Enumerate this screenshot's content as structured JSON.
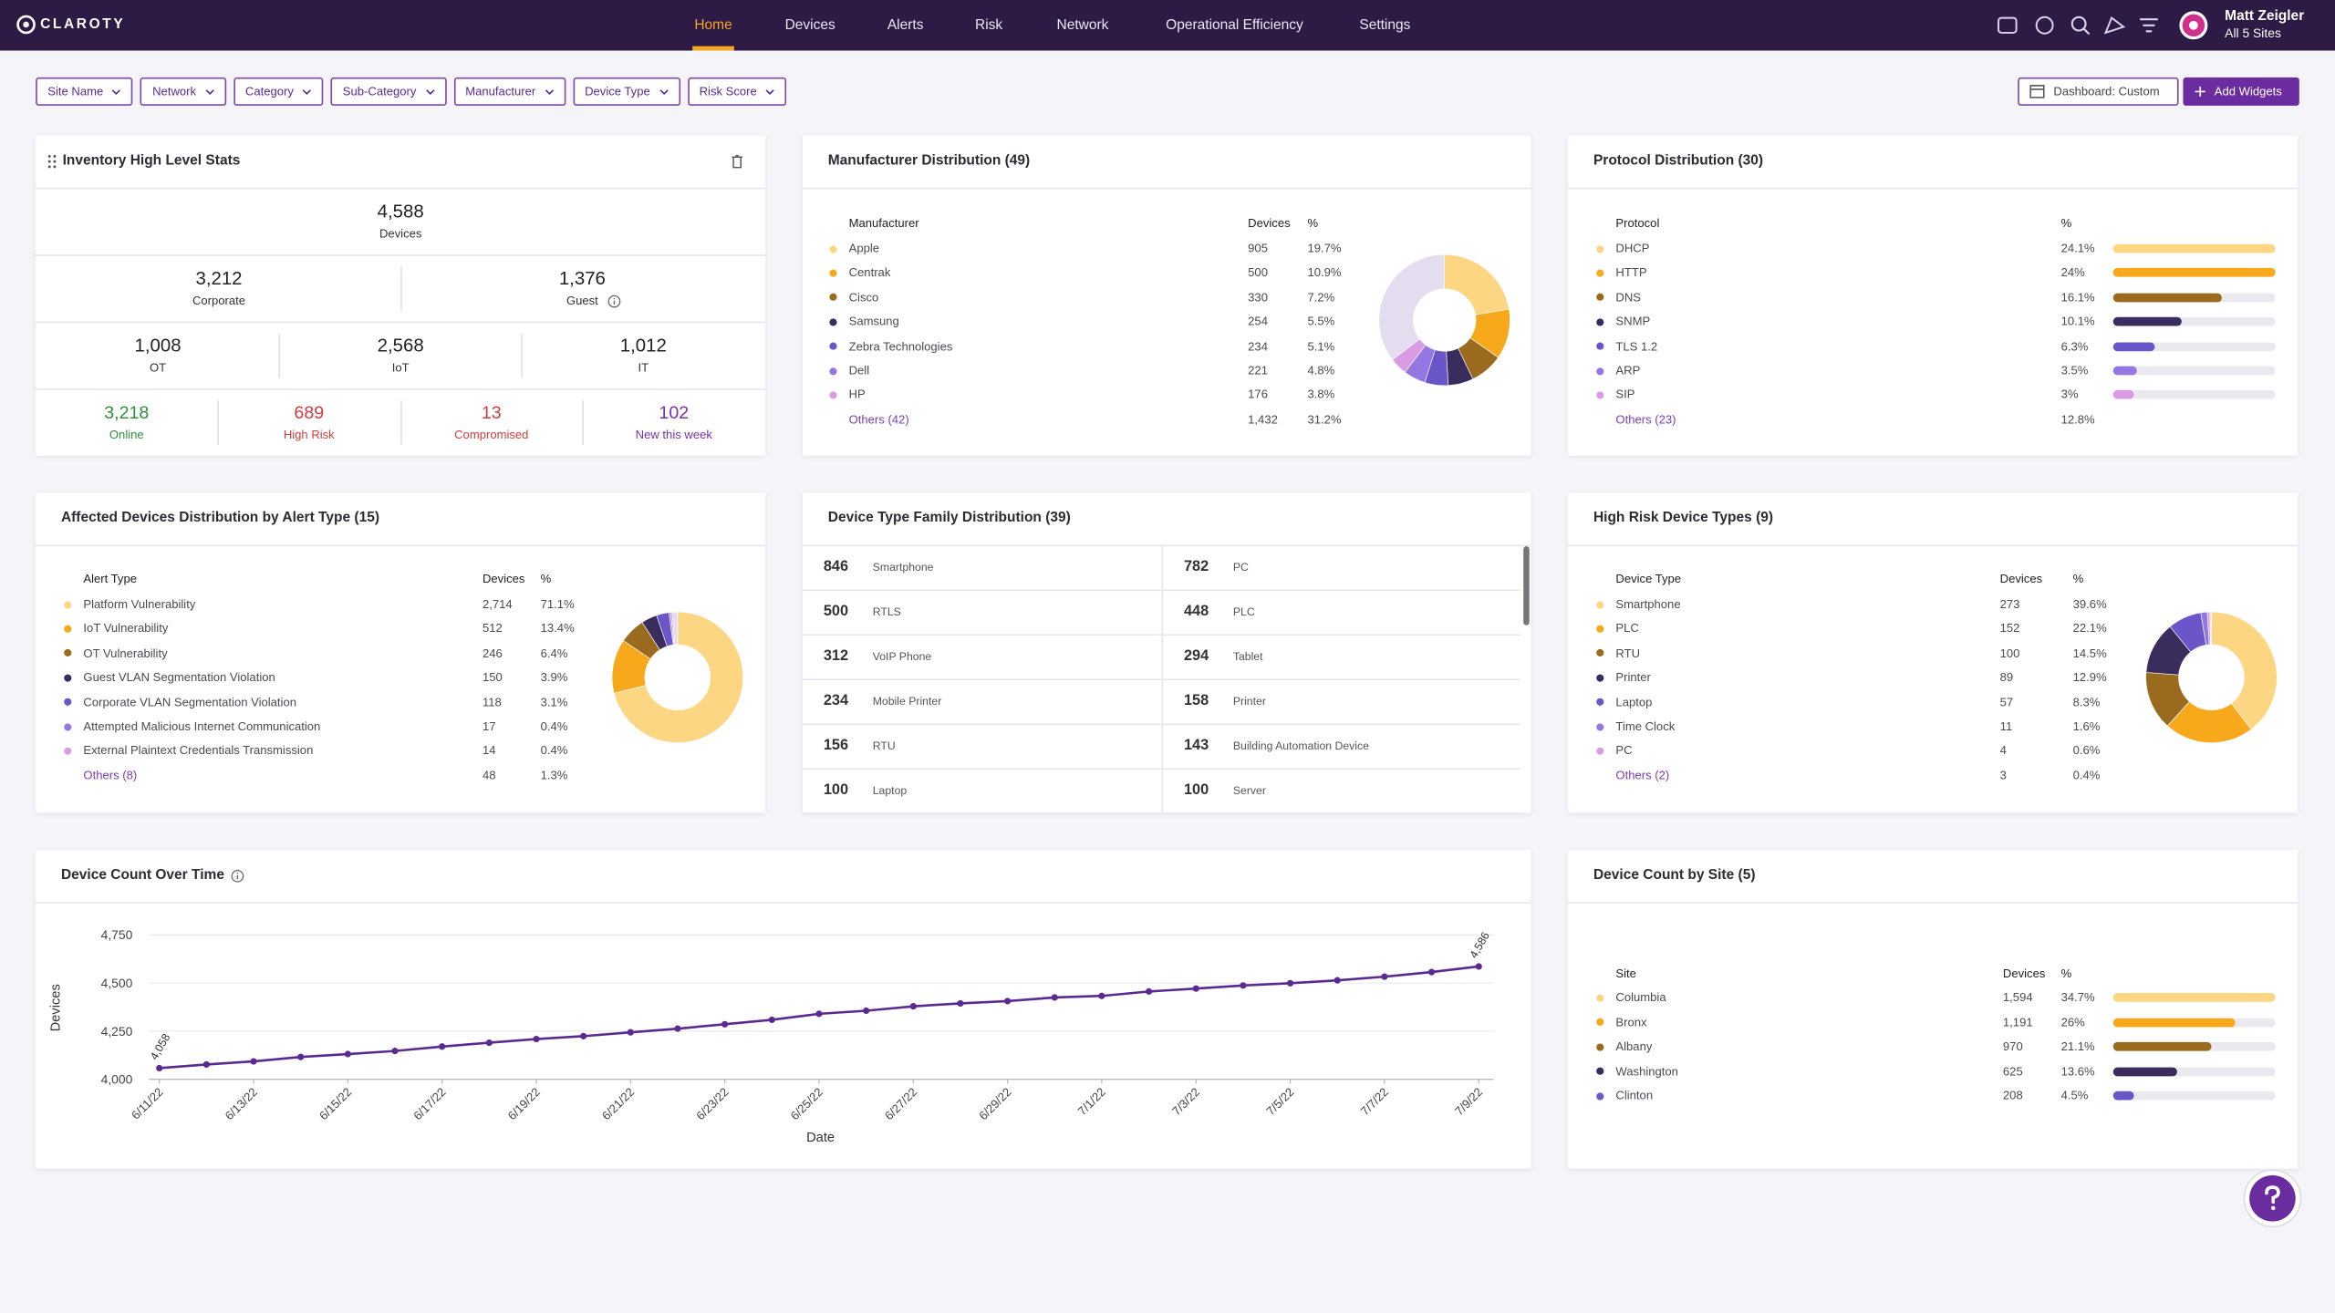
{
  "nav": {
    "brand": "CLAROTY",
    "items": [
      "Home",
      "Devices",
      "Alerts",
      "Risk",
      "Network",
      "Operational Efficiency",
      "Settings"
    ],
    "active": 0,
    "user": {
      "name": "Matt Zeigler",
      "scope": "All 5 Sites"
    }
  },
  "filters": {
    "items": [
      "Site Name",
      "Network",
      "Category",
      "Sub-Category",
      "Manufacturer",
      "Device Type",
      "Risk Score"
    ],
    "dashboard": "Dashboard: Custom",
    "add": "Add Widgets"
  },
  "palette": [
    "#fcd683",
    "#f7a81b",
    "#9a6a1f",
    "#3a2c5c",
    "#6a55c9",
    "#9477e3",
    "#d99be3",
    "#e4dcef"
  ],
  "inventory": {
    "title": "Inventory High Level Stats",
    "total": {
      "value": "4,588",
      "label": "Devices"
    },
    "split": [
      {
        "value": "3,212",
        "label": "Corporate"
      },
      {
        "value": "1,376",
        "label": "Guest"
      }
    ],
    "kinds": [
      {
        "value": "1,008",
        "label": "OT"
      },
      {
        "value": "2,568",
        "label": "IoT"
      },
      {
        "value": "1,012",
        "label": "IT"
      }
    ],
    "status": [
      {
        "value": "3,218",
        "label": "Online",
        "color": "#2f8f3c"
      },
      {
        "value": "689",
        "label": "High Risk",
        "color": "#d23d3d"
      },
      {
        "value": "13",
        "label": "Compromised",
        "color": "#d23d3d"
      },
      {
        "value": "102",
        "label": "New this week",
        "color": "#7a2fa8"
      }
    ]
  },
  "manufacturer": {
    "title": "Manufacturer Distribution (49)",
    "columns": [
      "Manufacturer",
      "Devices",
      "%"
    ],
    "rows": [
      {
        "name": "Apple",
        "devices": "905",
        "pct": {
          "value": 19.7,
          "label": "19.7%"
        }
      },
      {
        "name": "Centrak",
        "devices": "500",
        "pct": {
          "value": 10.9,
          "label": "10.9%"
        }
      },
      {
        "name": "Cisco",
        "devices": "330",
        "pct": {
          "value": 7.2,
          "label": "7.2%"
        }
      },
      {
        "name": "Samsung",
        "devices": "254",
        "pct": {
          "value": 5.5,
          "label": "5.5%"
        }
      },
      {
        "name": "Zebra Technologies",
        "devices": "234",
        "pct": {
          "value": 5.1,
          "label": "5.1%"
        }
      },
      {
        "name": "Dell",
        "devices": "221",
        "pct": {
          "value": 4.8,
          "label": "4.8%"
        }
      },
      {
        "name": "HP",
        "devices": "176",
        "pct": {
          "value": 3.8,
          "label": "3.8%"
        }
      }
    ],
    "others": {
      "name": "Others (42)",
      "devices": "1,432",
      "pct": {
        "value": 31.2,
        "label": "31.2%"
      }
    }
  },
  "protocol": {
    "title": "Protocol Distribution (30)",
    "columns": [
      "Protocol",
      "%"
    ],
    "rows": [
      {
        "name": "DHCP",
        "pct": {
          "value": 24.1,
          "label": "24.1%"
        }
      },
      {
        "name": "HTTP",
        "pct": {
          "value": 24,
          "label": "24%"
        }
      },
      {
        "name": "DNS",
        "pct": {
          "value": 16.1,
          "label": "16.1%"
        }
      },
      {
        "name": "SNMP",
        "pct": {
          "value": 10.1,
          "label": "10.1%"
        }
      },
      {
        "name": "TLS 1.2",
        "pct": {
          "value": 6.3,
          "label": "6.3%"
        }
      },
      {
        "name": "ARP",
        "pct": {
          "value": 3.5,
          "label": "3.5%"
        }
      },
      {
        "name": "SIP",
        "pct": {
          "value": 3,
          "label": "3%"
        }
      }
    ],
    "others": {
      "name": "Others (23)",
      "pct": {
        "value": 12.8,
        "label": "12.8%"
      }
    }
  },
  "alerts": {
    "title": "Affected Devices Distribution by Alert Type (15)",
    "columns": [
      "Alert Type",
      "Devices",
      "%"
    ],
    "rows": [
      {
        "name": "Platform Vulnerability",
        "devices": "2,714",
        "pct": {
          "value": 71.1,
          "label": "71.1%"
        }
      },
      {
        "name": "IoT Vulnerability",
        "devices": "512",
        "pct": {
          "value": 13.4,
          "label": "13.4%"
        }
      },
      {
        "name": "OT Vulnerability",
        "devices": "246",
        "pct": {
          "value": 6.4,
          "label": "6.4%"
        }
      },
      {
        "name": "Guest VLAN Segmentation Violation",
        "devices": "150",
        "pct": {
          "value": 3.9,
          "label": "3.9%"
        }
      },
      {
        "name": "Corporate VLAN Segmentation Violation",
        "devices": "118",
        "pct": {
          "value": 3.1,
          "label": "3.1%"
        }
      },
      {
        "name": "Attempted Malicious Internet Communication",
        "devices": "17",
        "pct": {
          "value": 0.4,
          "label": "0.4%"
        }
      },
      {
        "name": "External Plaintext Credentials Transmission",
        "devices": "14",
        "pct": {
          "value": 0.4,
          "label": "0.4%"
        }
      }
    ],
    "others": {
      "name": "Others (8)",
      "devices": "48",
      "pct": {
        "value": 1.3,
        "label": "1.3%"
      }
    }
  },
  "family": {
    "title": "Device Type Family Distribution (39)",
    "items": [
      {
        "count": "846",
        "name": "Smartphone"
      },
      {
        "count": "782",
        "name": "PC"
      },
      {
        "count": "500",
        "name": "RTLS"
      },
      {
        "count": "448",
        "name": "PLC"
      },
      {
        "count": "312",
        "name": "VoIP Phone"
      },
      {
        "count": "294",
        "name": "Tablet"
      },
      {
        "count": "234",
        "name": "Mobile Printer"
      },
      {
        "count": "158",
        "name": "Printer"
      },
      {
        "count": "156",
        "name": "RTU"
      },
      {
        "count": "143",
        "name": "Building Automation Device"
      },
      {
        "count": "100",
        "name": "Laptop"
      },
      {
        "count": "100",
        "name": "Server"
      }
    ]
  },
  "risk": {
    "title": "High Risk Device Types (9)",
    "columns": [
      "Device Type",
      "Devices",
      "%"
    ],
    "rows": [
      {
        "name": "Smartphone",
        "devices": "273",
        "pct": {
          "value": 39.6,
          "label": "39.6%"
        }
      },
      {
        "name": "PLC",
        "devices": "152",
        "pct": {
          "value": 22.1,
          "label": "22.1%"
        }
      },
      {
        "name": "RTU",
        "devices": "100",
        "pct": {
          "value": 14.5,
          "label": "14.5%"
        }
      },
      {
        "name": "Printer",
        "devices": "89",
        "pct": {
          "value": 12.9,
          "label": "12.9%"
        }
      },
      {
        "name": "Laptop",
        "devices": "57",
        "pct": {
          "value": 8.3,
          "label": "8.3%"
        }
      },
      {
        "name": "Time Clock",
        "devices": "11",
        "pct": {
          "value": 1.6,
          "label": "1.6%"
        }
      },
      {
        "name": "PC",
        "devices": "4",
        "pct": {
          "value": 0.6,
          "label": "0.6%"
        }
      }
    ],
    "others": {
      "name": "Others (2)",
      "devices": "3",
      "pct": {
        "value": 0.4,
        "label": "0.4%"
      }
    }
  },
  "timeline": {
    "chart_data": {
      "type": "line",
      "title": "Device Count Over Time",
      "x_label": "Date",
      "y_label": "Devices",
      "color": "#5b2a91",
      "categories": [
        "6/11/22",
        null,
        "6/13/22",
        null,
        "6/15/22",
        null,
        "6/17/22",
        null,
        "6/19/22",
        null,
        "6/21/22",
        null,
        "6/23/22",
        null,
        "6/25/22",
        null,
        "6/27/22",
        null,
        "6/29/22",
        null,
        "7/1/22",
        null,
        "7/3/22",
        null,
        "7/5/22",
        null,
        "7/7/22",
        null,
        "7/9/22"
      ],
      "values": [
        4058,
        4077,
        4093,
        4116,
        4131,
        4147,
        4170,
        4190,
        4209,
        4224,
        4244,
        4263,
        4286,
        4309,
        4340,
        4356,
        4379,
        4394,
        4406,
        4425,
        4433,
        4456,
        4471,
        4487,
        4499,
        4514,
        4533,
        4557,
        4586
      ],
      "value_labels": [
        "4,058",
        null,
        null,
        null,
        null,
        null,
        null,
        null,
        null,
        null,
        null,
        null,
        null,
        null,
        null,
        null,
        null,
        null,
        null,
        null,
        null,
        null,
        null,
        null,
        null,
        null,
        null,
        null,
        "4,586"
      ],
      "ylim": [
        4000,
        4750
      ],
      "yticks": [
        {
          "value": 4000,
          "label": "4,000"
        },
        {
          "value": 4250,
          "label": "4,250"
        },
        {
          "value": 4500,
          "label": "4,500"
        },
        {
          "value": 4750,
          "label": "4,750"
        }
      ],
      "grid": true
    }
  },
  "site": {
    "title": "Device Count by Site (5)",
    "columns": [
      "Site",
      "Devices",
      "%"
    ],
    "rows": [
      {
        "name": "Columbia",
        "devices": "1,594",
        "pct": {
          "value": 34.7,
          "label": "34.7%"
        }
      },
      {
        "name": "Bronx",
        "devices": "1,191",
        "pct": {
          "value": 26,
          "label": "26%"
        }
      },
      {
        "name": "Albany",
        "devices": "970",
        "pct": {
          "value": 21.1,
          "label": "21.1%"
        }
      },
      {
        "name": "Washington",
        "devices": "625",
        "pct": {
          "value": 13.6,
          "label": "13.6%"
        }
      },
      {
        "name": "Clinton",
        "devices": "208",
        "pct": {
          "value": 4.5,
          "label": "4.5%"
        }
      }
    ]
  }
}
